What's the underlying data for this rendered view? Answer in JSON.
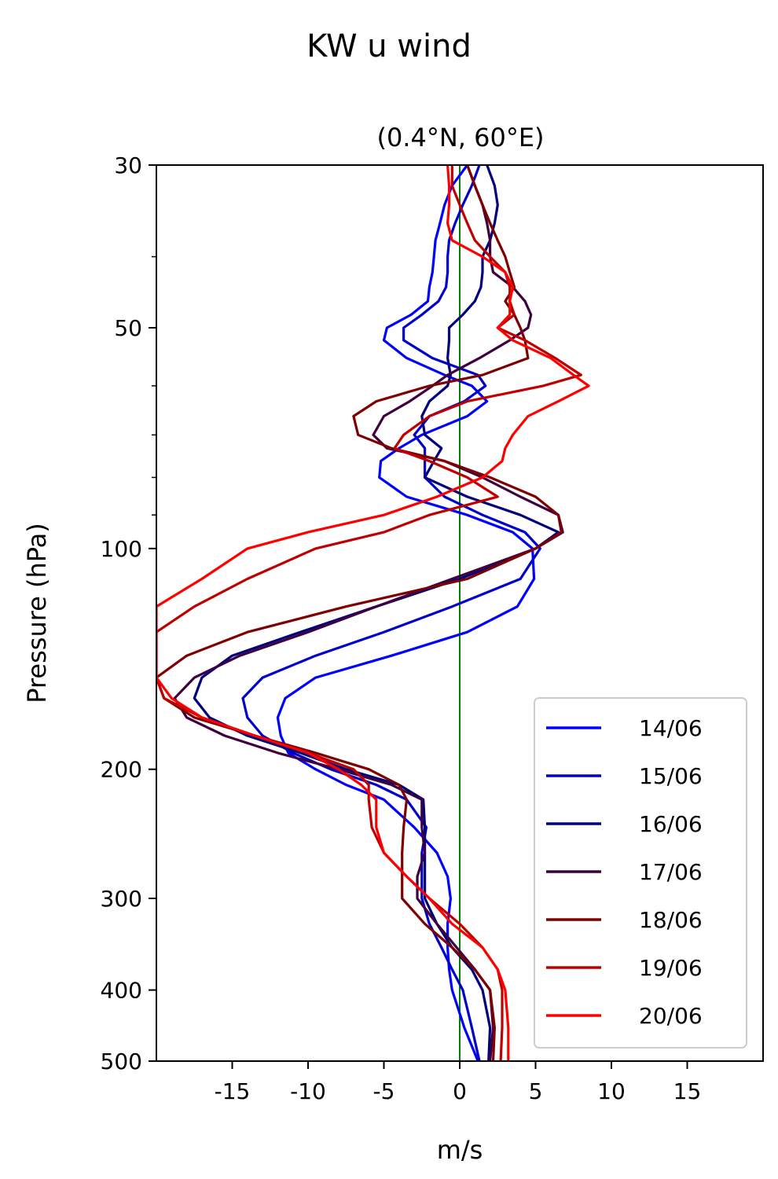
{
  "chart_data": {
    "type": "line",
    "title": "KW u wind",
    "subtitle": "(0.4°N, 60°E)",
    "xlabel": "m/s",
    "ylabel": "Pressure (hPa)",
    "xlim": [
      -20,
      20
    ],
    "ylim": [
      500,
      30
    ],
    "yscale": "log",
    "xticks": [
      -15,
      -10,
      -5,
      0,
      5,
      10,
      15
    ],
    "xtick_labels": [
      "-15",
      "-10",
      "-5",
      "0",
      "5",
      "10",
      "15"
    ],
    "yticks": [
      30,
      50,
      100,
      200,
      300,
      400,
      500
    ],
    "ytick_labels": [
      "30",
      "50",
      "100",
      "200",
      "300",
      "400",
      "500"
    ],
    "y_minor_ticks": [
      40,
      60,
      70,
      80,
      90
    ],
    "grid": false,
    "legend": "lower-right",
    "zero_line": {
      "x": 0,
      "color": "#008000"
    },
    "pressure_levels": [
      30,
      32,
      34,
      36,
      38,
      40,
      42,
      44,
      46,
      48,
      50,
      52,
      55,
      58,
      60,
      63,
      66,
      70,
      73,
      76,
      80,
      85,
      90,
      95,
      100,
      110,
      120,
      130,
      140,
      150,
      160,
      170,
      180,
      190,
      200,
      210,
      220,
      240,
      260,
      280,
      300,
      325,
      350,
      375,
      400,
      450,
      500
    ],
    "series": [
      {
        "name": "14/06",
        "color": "#0000ff",
        "values": [
          0.5,
          -0.5,
          -1.0,
          -1.3,
          -1.6,
          -1.7,
          -1.8,
          -2.0,
          -2.1,
          -3.2,
          -4.8,
          -5.0,
          -3.5,
          -1.0,
          0.8,
          1.8,
          0.5,
          -2.5,
          -4.0,
          -5.2,
          -5.3,
          -3.5,
          0.5,
          3.5,
          4.8,
          4.9,
          3.8,
          0.5,
          -4.5,
          -9.5,
          -11.5,
          -12.0,
          -11.8,
          -11.3,
          -9.5,
          -7.5,
          -5.0,
          -3.0,
          -1.5,
          -0.8,
          -0.6,
          -0.8,
          -0.8,
          -0.7,
          -0.5,
          0.3,
          1.2
        ]
      },
      {
        "name": "15/06",
        "color": "#0000cc",
        "values": [
          1.3,
          0.8,
          0.2,
          -0.3,
          -0.7,
          -0.8,
          -0.8,
          -0.9,
          -1.4,
          -2.5,
          -3.7,
          -3.7,
          -1.8,
          1.2,
          1.7,
          0.3,
          -2.0,
          -3.0,
          -2.3,
          -2.3,
          -2.3,
          -1.0,
          1.5,
          4.3,
          5.3,
          4.0,
          -0.5,
          -5.0,
          -9.5,
          -13.0,
          -14.3,
          -14.0,
          -13.0,
          -11.0,
          -8.5,
          -5.5,
          -3.5,
          -2.2,
          -2.5,
          -2.5,
          -2.5,
          -2.0,
          -1.2,
          -0.5,
          0.2,
          0.8,
          1.3
        ]
      },
      {
        "name": "16/06",
        "color": "#00007f",
        "values": [
          1.8,
          2.3,
          2.5,
          2.3,
          2.0,
          1.5,
          1.5,
          1.4,
          1.0,
          0.2,
          -0.7,
          -0.7,
          -0.8,
          -0.6,
          -0.8,
          -2.0,
          -2.5,
          -2.3,
          -1.2,
          -1.7,
          -2.3,
          0.5,
          4.0,
          6.5,
          5.0,
          0.0,
          -5.5,
          -10.5,
          -15.0,
          -17.0,
          -17.5,
          -16.5,
          -14.0,
          -10.5,
          -7.5,
          -4.0,
          -2.4,
          -2.3,
          -2.3,
          -2.3,
          -2.3,
          -1.5,
          -0.5,
          0.8,
          1.5,
          2.0,
          1.9
        ]
      },
      {
        "name": "17/06",
        "color": "#3f003f",
        "values": [
          0.5,
          1.0,
          1.5,
          1.8,
          2.0,
          2.0,
          2.2,
          3.5,
          4.3,
          4.7,
          4.5,
          3.3,
          1.3,
          -0.8,
          -1.8,
          -3.3,
          -5.0,
          -5.7,
          -4.8,
          -1.0,
          1.5,
          4.0,
          6.5,
          6.8,
          5.0,
          -0.5,
          -5.5,
          -10.0,
          -14.5,
          -17.5,
          -18.8,
          -18.0,
          -15.5,
          -12.0,
          -8.0,
          -4.5,
          -2.5,
          -2.5,
          -2.3,
          -2.8,
          -2.8,
          -1.5,
          -0.2,
          1.0,
          2.0,
          2.2,
          2.0
        ]
      },
      {
        "name": "18/06",
        "color": "#7f0000",
        "values": [
          0.5,
          1.0,
          1.5,
          2.0,
          2.5,
          3.0,
          3.3,
          3.6,
          3.0,
          3.6,
          4.0,
          4.3,
          4.5,
          1.5,
          -2.0,
          -5.5,
          -7.0,
          -6.7,
          -4.5,
          -1.0,
          2.0,
          5.0,
          6.5,
          6.7,
          5.0,
          0.5,
          -7.5,
          -14.0,
          -18.0,
          -20.0,
          -19.5,
          -17.5,
          -13.5,
          -9.5,
          -6.0,
          -4.0,
          -3.5,
          -3.7,
          -3.8,
          -3.8,
          -3.8,
          -2.3,
          -0.5,
          1.0,
          2.0,
          2.3,
          2.2
        ]
      },
      {
        "name": "19/06",
        "color": "#bf0000",
        "values": [
          -0.5,
          -0.5,
          0.0,
          0.5,
          1.0,
          2.0,
          3.0,
          3.3,
          3.3,
          3.6,
          2.5,
          4.3,
          6.3,
          8.0,
          5.5,
          0.5,
          -2.0,
          -3.7,
          -4.3,
          -2.0,
          0.5,
          2.5,
          -2.0,
          -5.0,
          -9.5,
          -14.0,
          -17.5,
          -20.0,
          -20.0,
          -20.0,
          -19.5,
          -17.0,
          -13.5,
          -10.0,
          -7.0,
          -6.0,
          -6.0,
          -5.8,
          -5.0,
          -3.5,
          -2.0,
          0.0,
          1.5,
          2.5,
          2.8,
          2.8,
          2.7
        ]
      },
      {
        "name": "20/06",
        "color": "#ff0000",
        "values": [
          -0.8,
          -0.7,
          -0.7,
          -0.8,
          -0.5,
          1.5,
          3.0,
          3.5,
          3.3,
          3.3,
          2.5,
          3.5,
          6.0,
          7.5,
          8.5,
          6.5,
          4.5,
          3.5,
          3.0,
          2.8,
          1.5,
          -1.5,
          -5.0,
          -10.0,
          -14.0,
          -17.0,
          -20.0,
          -20.0,
          -20.0,
          -20.0,
          -19.0,
          -17.0,
          -13.5,
          -10.0,
          -8.0,
          -6.5,
          -5.5,
          -5.5,
          -5.0,
          -3.5,
          -2.0,
          -0.5,
          1.5,
          2.5,
          3.0,
          3.2,
          3.2
        ]
      }
    ]
  }
}
